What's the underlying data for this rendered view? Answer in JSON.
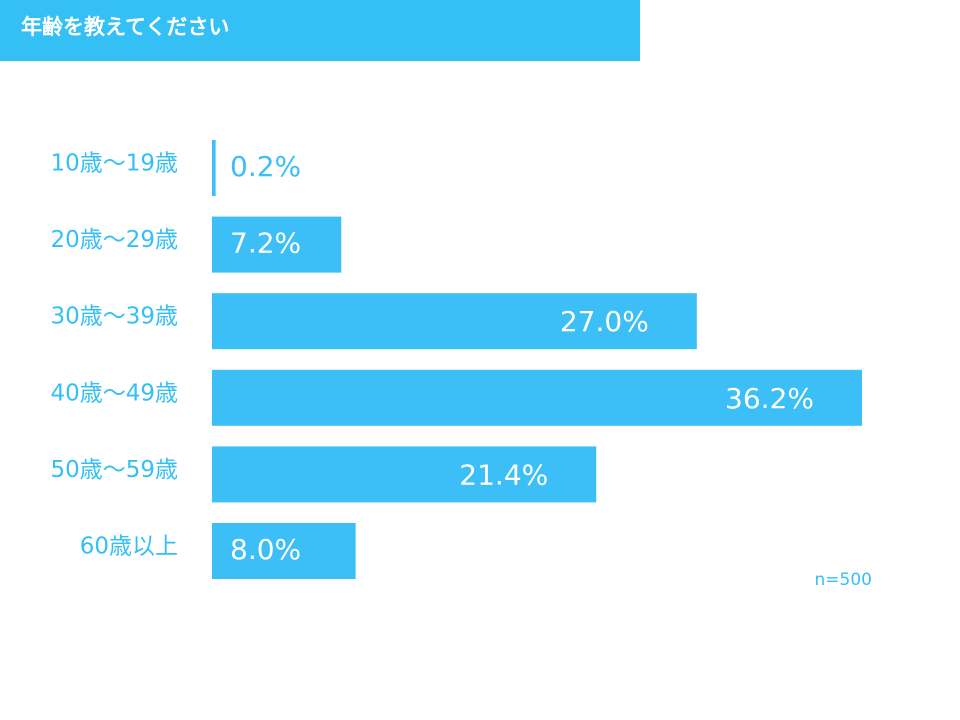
{
  "title": "年齢を教えてください",
  "note": "n=500",
  "colors": {
    "accent": "#35c0f5",
    "bar": "#3bbff6",
    "label_inside": "#ffffff",
    "label_outside": "#3bbff6"
  },
  "chart_data": {
    "type": "bar",
    "orientation": "horizontal",
    "title": "年齢を教えてください",
    "categories": [
      "10歳～19歳",
      "20歳～29歳",
      "30歳～39歳",
      "40歳～49歳",
      "50歳～59歳",
      "60歳以上"
    ],
    "values": [
      0.2,
      7.2,
      27.0,
      36.2,
      21.4,
      8.0
    ],
    "value_labels": [
      "0.2%",
      "7.2%",
      "27.0%",
      "36.2%",
      "21.4%",
      "8.0%"
    ],
    "xlim": [
      0,
      36.2
    ],
    "grid": false,
    "legend": "none"
  }
}
